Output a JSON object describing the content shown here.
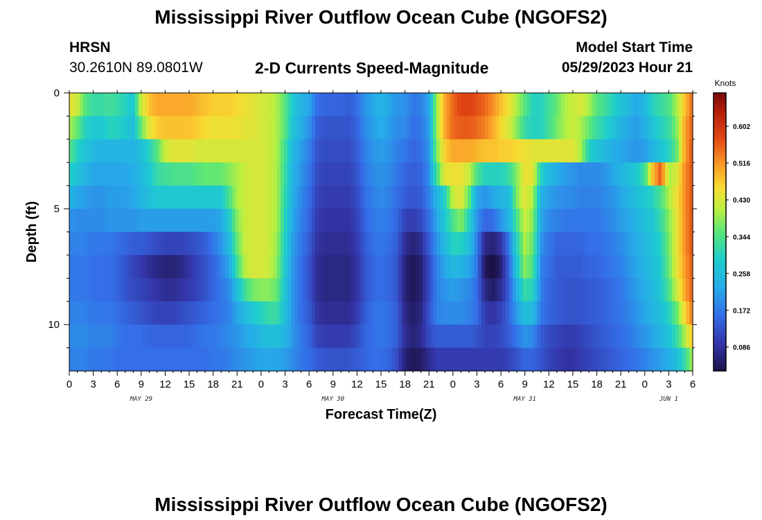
{
  "header": {
    "title": "Mississippi River Outflow Ocean Cube (NGOFS2)",
    "station": "HRSN",
    "coords": "30.2610N  89.0801W",
    "subtitle": "2-D Currents Speed-Magnitude",
    "model_label": "Model Start Time",
    "model_time": "05/29/2023 Hour 21"
  },
  "footer": {
    "title": "Mississippi River Outflow Ocean Cube (NGOFS2)"
  },
  "chart_data": {
    "type": "heatmap",
    "title": "2-D Currents Speed-Magnitude",
    "xlabel": "Forecast Time(Z)",
    "ylabel": "Depth (ft)",
    "x_tick_labels": [
      "0",
      "3",
      "6",
      "9",
      "12",
      "15",
      "18",
      "21",
      "0",
      "3",
      "6",
      "9",
      "12",
      "15",
      "18",
      "21",
      "0",
      "3",
      "6",
      "9",
      "12",
      "15",
      "18",
      "21",
      "0",
      "3",
      "6"
    ],
    "date_labels": [
      {
        "label": "MAY 29",
        "tick": 3
      },
      {
        "label": "MAY 30",
        "tick": 11
      },
      {
        "label": "MAY 31",
        "tick": 19
      },
      {
        "label": "JUN 1",
        "tick": 25
      }
    ],
    "xlim_hours": [
      0,
      78
    ],
    "y_tick_labels": [
      "0",
      "5",
      "10"
    ],
    "ylim_ft": [
      0,
      12
    ],
    "colorbar": {
      "unit": "Knots",
      "range": [
        0.03,
        0.68
      ],
      "tick_labels": [
        "0.086",
        "0.172",
        "0.258",
        "0.344",
        "0.430",
        "0.516",
        "0.602"
      ]
    },
    "depth_levels": 12,
    "time_anchors_hours": [
      0,
      1,
      2,
      3,
      4,
      5,
      6,
      7,
      8,
      9,
      10,
      11,
      12,
      13,
      14,
      15,
      16,
      17,
      18,
      19,
      20,
      21,
      22,
      23,
      24,
      25,
      26,
      27,
      28,
      29,
      30,
      31,
      32,
      33,
      34,
      35,
      36,
      37,
      38,
      39,
      40,
      41,
      42,
      43,
      44,
      45,
      46,
      47,
      48,
      49,
      50,
      51,
      52,
      53,
      54,
      55,
      56,
      57,
      58,
      59,
      60,
      61,
      62,
      63,
      64,
      65,
      66,
      67,
      68,
      69,
      70,
      71,
      72,
      73,
      74,
      75,
      76,
      77,
      78
    ],
    "speed_knots": [
      [
        0.45,
        0.42,
        0.35,
        0.32,
        0.32,
        0.33,
        0.32,
        0.3,
        0.28,
        0.42,
        0.48,
        0.5,
        0.5,
        0.5,
        0.5,
        0.5,
        0.49,
        0.48,
        0.47,
        0.47,
        0.47,
        0.46,
        0.45,
        0.44,
        0.43,
        0.42,
        0.4,
        0.35,
        0.28,
        0.24,
        0.22,
        0.16,
        0.15,
        0.15,
        0.15,
        0.14,
        0.16,
        0.2,
        0.22,
        0.24,
        0.22,
        0.2,
        0.2,
        0.17,
        0.18,
        0.22,
        0.4,
        0.5,
        0.55,
        0.58,
        0.58,
        0.57,
        0.55,
        0.52,
        0.48,
        0.45,
        0.4,
        0.35,
        0.3,
        0.3,
        0.33,
        0.36,
        0.4,
        0.42,
        0.43,
        0.4,
        0.35,
        0.33,
        0.3,
        0.27,
        0.25,
        0.22,
        0.25,
        0.3,
        0.32,
        0.34,
        0.4,
        0.48,
        0.55
      ],
      [
        0.4,
        0.36,
        0.3,
        0.28,
        0.28,
        0.3,
        0.3,
        0.28,
        0.26,
        0.36,
        0.44,
        0.47,
        0.48,
        0.48,
        0.48,
        0.48,
        0.47,
        0.46,
        0.45,
        0.45,
        0.45,
        0.45,
        0.44,
        0.44,
        0.43,
        0.42,
        0.4,
        0.35,
        0.27,
        0.23,
        0.2,
        0.14,
        0.13,
        0.13,
        0.13,
        0.13,
        0.15,
        0.19,
        0.21,
        0.23,
        0.21,
        0.19,
        0.19,
        0.16,
        0.17,
        0.21,
        0.4,
        0.5,
        0.55,
        0.56,
        0.56,
        0.55,
        0.53,
        0.5,
        0.46,
        0.43,
        0.38,
        0.32,
        0.3,
        0.3,
        0.33,
        0.37,
        0.4,
        0.42,
        0.4,
        0.36,
        0.32,
        0.3,
        0.27,
        0.24,
        0.22,
        0.21,
        0.23,
        0.27,
        0.3,
        0.32,
        0.38,
        0.5,
        0.56
      ],
      [
        0.35,
        0.3,
        0.27,
        0.25,
        0.24,
        0.24,
        0.24,
        0.24,
        0.24,
        0.26,
        0.3,
        0.35,
        0.42,
        0.44,
        0.44,
        0.44,
        0.43,
        0.43,
        0.43,
        0.43,
        0.43,
        0.43,
        0.43,
        0.43,
        0.43,
        0.42,
        0.4,
        0.33,
        0.25,
        0.21,
        0.18,
        0.13,
        0.12,
        0.12,
        0.12,
        0.12,
        0.14,
        0.18,
        0.2,
        0.21,
        0.2,
        0.18,
        0.17,
        0.15,
        0.16,
        0.2,
        0.38,
        0.47,
        0.5,
        0.5,
        0.5,
        0.49,
        0.48,
        0.48,
        0.47,
        0.47,
        0.46,
        0.45,
        0.44,
        0.44,
        0.44,
        0.44,
        0.44,
        0.44,
        0.4,
        0.3,
        0.27,
        0.25,
        0.23,
        0.22,
        0.21,
        0.2,
        0.21,
        0.24,
        0.27,
        0.3,
        0.36,
        0.5,
        0.57
      ],
      [
        0.3,
        0.27,
        0.24,
        0.22,
        0.22,
        0.22,
        0.22,
        0.22,
        0.23,
        0.25,
        0.28,
        0.32,
        0.33,
        0.34,
        0.34,
        0.34,
        0.35,
        0.36,
        0.36,
        0.36,
        0.38,
        0.4,
        0.42,
        0.43,
        0.43,
        0.42,
        0.4,
        0.32,
        0.24,
        0.2,
        0.17,
        0.12,
        0.11,
        0.11,
        0.11,
        0.11,
        0.13,
        0.17,
        0.19,
        0.2,
        0.19,
        0.17,
        0.15,
        0.14,
        0.15,
        0.19,
        0.34,
        0.44,
        0.45,
        0.45,
        0.42,
        0.34,
        0.3,
        0.3,
        0.3,
        0.32,
        0.38,
        0.45,
        0.44,
        0.3,
        0.25,
        0.23,
        0.21,
        0.2,
        0.19,
        0.19,
        0.19,
        0.2,
        0.22,
        0.24,
        0.26,
        0.28,
        0.33,
        0.48,
        0.56,
        0.4,
        0.43,
        0.52,
        0.57
      ],
      [
        0.24,
        0.22,
        0.21,
        0.2,
        0.2,
        0.21,
        0.21,
        0.21,
        0.22,
        0.24,
        0.26,
        0.28,
        0.28,
        0.28,
        0.28,
        0.28,
        0.28,
        0.28,
        0.28,
        0.28,
        0.34,
        0.4,
        0.42,
        0.43,
        0.43,
        0.42,
        0.4,
        0.31,
        0.23,
        0.19,
        0.16,
        0.11,
        0.1,
        0.1,
        0.1,
        0.1,
        0.12,
        0.16,
        0.18,
        0.19,
        0.18,
        0.16,
        0.14,
        0.13,
        0.14,
        0.18,
        0.24,
        0.3,
        0.42,
        0.44,
        0.36,
        0.22,
        0.2,
        0.22,
        0.24,
        0.25,
        0.38,
        0.44,
        0.4,
        0.24,
        0.21,
        0.2,
        0.19,
        0.19,
        0.18,
        0.18,
        0.18,
        0.19,
        0.2,
        0.22,
        0.24,
        0.26,
        0.28,
        0.3,
        0.34,
        0.4,
        0.45,
        0.52,
        0.57
      ],
      [
        0.2,
        0.19,
        0.19,
        0.19,
        0.19,
        0.2,
        0.2,
        0.2,
        0.2,
        0.21,
        0.21,
        0.21,
        0.21,
        0.21,
        0.21,
        0.21,
        0.21,
        0.21,
        0.21,
        0.22,
        0.29,
        0.38,
        0.42,
        0.43,
        0.43,
        0.42,
        0.4,
        0.3,
        0.22,
        0.18,
        0.15,
        0.1,
        0.09,
        0.09,
        0.09,
        0.09,
        0.11,
        0.15,
        0.17,
        0.18,
        0.17,
        0.15,
        0.11,
        0.1,
        0.12,
        0.16,
        0.22,
        0.28,
        0.34,
        0.38,
        0.3,
        0.2,
        0.15,
        0.16,
        0.2,
        0.24,
        0.34,
        0.42,
        0.38,
        0.22,
        0.19,
        0.18,
        0.17,
        0.17,
        0.17,
        0.17,
        0.17,
        0.18,
        0.19,
        0.21,
        0.22,
        0.24,
        0.26,
        0.28,
        0.32,
        0.38,
        0.44,
        0.52,
        0.57
      ],
      [
        0.18,
        0.18,
        0.18,
        0.17,
        0.17,
        0.17,
        0.16,
        0.15,
        0.14,
        0.14,
        0.13,
        0.12,
        0.11,
        0.11,
        0.11,
        0.12,
        0.13,
        0.14,
        0.17,
        0.2,
        0.25,
        0.36,
        0.42,
        0.43,
        0.43,
        0.42,
        0.39,
        0.29,
        0.21,
        0.17,
        0.14,
        0.09,
        0.08,
        0.08,
        0.08,
        0.08,
        0.1,
        0.14,
        0.16,
        0.17,
        0.16,
        0.14,
        0.08,
        0.06,
        0.08,
        0.14,
        0.2,
        0.25,
        0.3,
        0.3,
        0.26,
        0.18,
        0.07,
        0.06,
        0.09,
        0.17,
        0.3,
        0.4,
        0.36,
        0.2,
        0.17,
        0.15,
        0.15,
        0.15,
        0.15,
        0.16,
        0.16,
        0.17,
        0.18,
        0.19,
        0.21,
        0.23,
        0.25,
        0.27,
        0.3,
        0.37,
        0.44,
        0.52,
        0.57
      ],
      [
        0.17,
        0.17,
        0.17,
        0.16,
        0.16,
        0.16,
        0.15,
        0.13,
        0.11,
        0.1,
        0.08,
        0.07,
        0.06,
        0.06,
        0.07,
        0.09,
        0.11,
        0.13,
        0.15,
        0.18,
        0.22,
        0.33,
        0.41,
        0.43,
        0.43,
        0.42,
        0.38,
        0.28,
        0.2,
        0.16,
        0.13,
        0.08,
        0.07,
        0.07,
        0.07,
        0.07,
        0.09,
        0.13,
        0.15,
        0.16,
        0.15,
        0.13,
        0.06,
        0.04,
        0.06,
        0.12,
        0.18,
        0.22,
        0.25,
        0.24,
        0.22,
        0.17,
        0.04,
        0.02,
        0.06,
        0.15,
        0.28,
        0.38,
        0.34,
        0.18,
        0.16,
        0.14,
        0.14,
        0.14,
        0.14,
        0.15,
        0.15,
        0.16,
        0.17,
        0.18,
        0.2,
        0.22,
        0.24,
        0.26,
        0.29,
        0.36,
        0.44,
        0.51,
        0.56
      ],
      [
        0.17,
        0.17,
        0.17,
        0.16,
        0.16,
        0.16,
        0.15,
        0.13,
        0.12,
        0.11,
        0.1,
        0.09,
        0.08,
        0.08,
        0.09,
        0.1,
        0.11,
        0.13,
        0.15,
        0.17,
        0.19,
        0.26,
        0.33,
        0.37,
        0.38,
        0.38,
        0.36,
        0.27,
        0.2,
        0.16,
        0.13,
        0.08,
        0.07,
        0.07,
        0.07,
        0.07,
        0.09,
        0.13,
        0.15,
        0.16,
        0.15,
        0.13,
        0.06,
        0.04,
        0.06,
        0.12,
        0.18,
        0.2,
        0.21,
        0.2,
        0.19,
        0.16,
        0.07,
        0.05,
        0.08,
        0.14,
        0.24,
        0.32,
        0.3,
        0.18,
        0.15,
        0.14,
        0.13,
        0.13,
        0.13,
        0.14,
        0.14,
        0.15,
        0.16,
        0.17,
        0.19,
        0.21,
        0.23,
        0.25,
        0.28,
        0.34,
        0.42,
        0.5,
        0.56
      ],
      [
        0.18,
        0.18,
        0.18,
        0.17,
        0.17,
        0.17,
        0.16,
        0.15,
        0.14,
        0.13,
        0.12,
        0.11,
        0.11,
        0.11,
        0.12,
        0.13,
        0.14,
        0.15,
        0.16,
        0.17,
        0.18,
        0.22,
        0.25,
        0.28,
        0.3,
        0.32,
        0.32,
        0.26,
        0.2,
        0.16,
        0.14,
        0.09,
        0.08,
        0.08,
        0.08,
        0.08,
        0.1,
        0.14,
        0.16,
        0.17,
        0.16,
        0.14,
        0.07,
        0.05,
        0.07,
        0.13,
        0.18,
        0.19,
        0.19,
        0.19,
        0.18,
        0.16,
        0.1,
        0.09,
        0.11,
        0.15,
        0.21,
        0.26,
        0.25,
        0.17,
        0.15,
        0.14,
        0.13,
        0.13,
        0.13,
        0.14,
        0.14,
        0.15,
        0.16,
        0.17,
        0.18,
        0.2,
        0.22,
        0.24,
        0.26,
        0.3,
        0.36,
        0.46,
        0.54
      ],
      [
        0.19,
        0.19,
        0.19,
        0.18,
        0.18,
        0.18,
        0.17,
        0.16,
        0.16,
        0.16,
        0.15,
        0.15,
        0.15,
        0.15,
        0.15,
        0.15,
        0.16,
        0.17,
        0.17,
        0.18,
        0.19,
        0.2,
        0.22,
        0.23,
        0.25,
        0.26,
        0.26,
        0.24,
        0.2,
        0.17,
        0.15,
        0.11,
        0.1,
        0.1,
        0.1,
        0.1,
        0.12,
        0.15,
        0.16,
        0.17,
        0.16,
        0.14,
        0.08,
        0.06,
        0.08,
        0.12,
        0.14,
        0.14,
        0.14,
        0.14,
        0.14,
        0.13,
        0.11,
        0.11,
        0.12,
        0.14,
        0.17,
        0.2,
        0.19,
        0.14,
        0.12,
        0.11,
        0.1,
        0.1,
        0.11,
        0.12,
        0.13,
        0.14,
        0.15,
        0.16,
        0.17,
        0.19,
        0.2,
        0.22,
        0.24,
        0.27,
        0.32,
        0.4,
        0.48
      ],
      [
        0.18,
        0.18,
        0.18,
        0.17,
        0.17,
        0.17,
        0.16,
        0.16,
        0.16,
        0.16,
        0.16,
        0.16,
        0.16,
        0.16,
        0.16,
        0.16,
        0.16,
        0.16,
        0.17,
        0.17,
        0.18,
        0.19,
        0.2,
        0.21,
        0.22,
        0.22,
        0.22,
        0.21,
        0.19,
        0.17,
        0.16,
        0.14,
        0.13,
        0.13,
        0.13,
        0.13,
        0.14,
        0.15,
        0.16,
        0.16,
        0.15,
        0.12,
        0.06,
        0.04,
        0.05,
        0.08,
        0.1,
        0.1,
        0.1,
        0.1,
        0.1,
        0.1,
        0.1,
        0.1,
        0.1,
        0.11,
        0.13,
        0.15,
        0.15,
        0.13,
        0.11,
        0.1,
        0.09,
        0.09,
        0.1,
        0.11,
        0.12,
        0.13,
        0.14,
        0.15,
        0.16,
        0.17,
        0.18,
        0.2,
        0.21,
        0.23,
        0.26,
        0.32,
        0.4
      ]
    ]
  }
}
